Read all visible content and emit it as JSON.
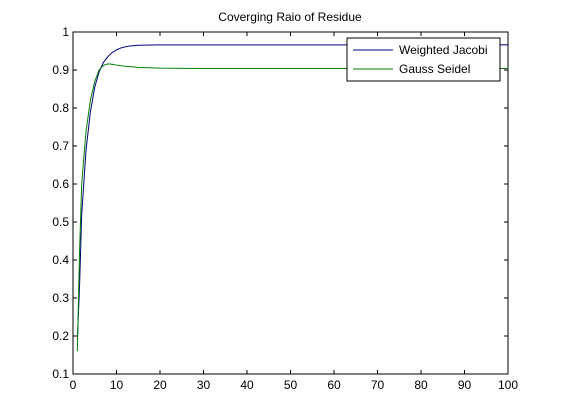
{
  "chart_data": {
    "type": "line",
    "title": "Coverging Raio of Residue",
    "xlabel": "",
    "ylabel": "",
    "xlim": [
      0,
      100
    ],
    "ylim": [
      0.1,
      1.0
    ],
    "x_ticks": [
      0,
      10,
      20,
      30,
      40,
      50,
      60,
      70,
      80,
      90,
      100
    ],
    "y_ticks": [
      0.1,
      0.2,
      0.3,
      0.4,
      0.5,
      0.6,
      0.7,
      0.8,
      0.9,
      1
    ],
    "grid": false,
    "legend_position": "top-right",
    "series": [
      {
        "name": "Weighted Jacobi",
        "color": "#00007f",
        "x": [
          1,
          1.5,
          2,
          3,
          4,
          5,
          6,
          7,
          8,
          9,
          10,
          11,
          12,
          13,
          14,
          15,
          20,
          30,
          40,
          50,
          60,
          70,
          80,
          90,
          100
        ],
        "y": [
          0.19,
          0.33,
          0.52,
          0.69,
          0.79,
          0.855,
          0.895,
          0.92,
          0.935,
          0.946,
          0.953,
          0.958,
          0.961,
          0.963,
          0.964,
          0.965,
          0.966,
          0.966,
          0.966,
          0.966,
          0.966,
          0.966,
          0.966,
          0.966,
          0.966
        ]
      },
      {
        "name": "Gauss Seidel",
        "color": "#007f00",
        "x": [
          1,
          1.5,
          2,
          3,
          4,
          5,
          6,
          7,
          8,
          9,
          10,
          12,
          15,
          20,
          30,
          40,
          50,
          60,
          70,
          80,
          90,
          100
        ],
        "y": [
          0.16,
          0.42,
          0.6,
          0.74,
          0.82,
          0.87,
          0.9,
          0.912,
          0.916,
          0.915,
          0.913,
          0.91,
          0.907,
          0.905,
          0.904,
          0.904,
          0.904,
          0.904,
          0.904,
          0.904,
          0.904,
          0.904
        ]
      }
    ]
  }
}
